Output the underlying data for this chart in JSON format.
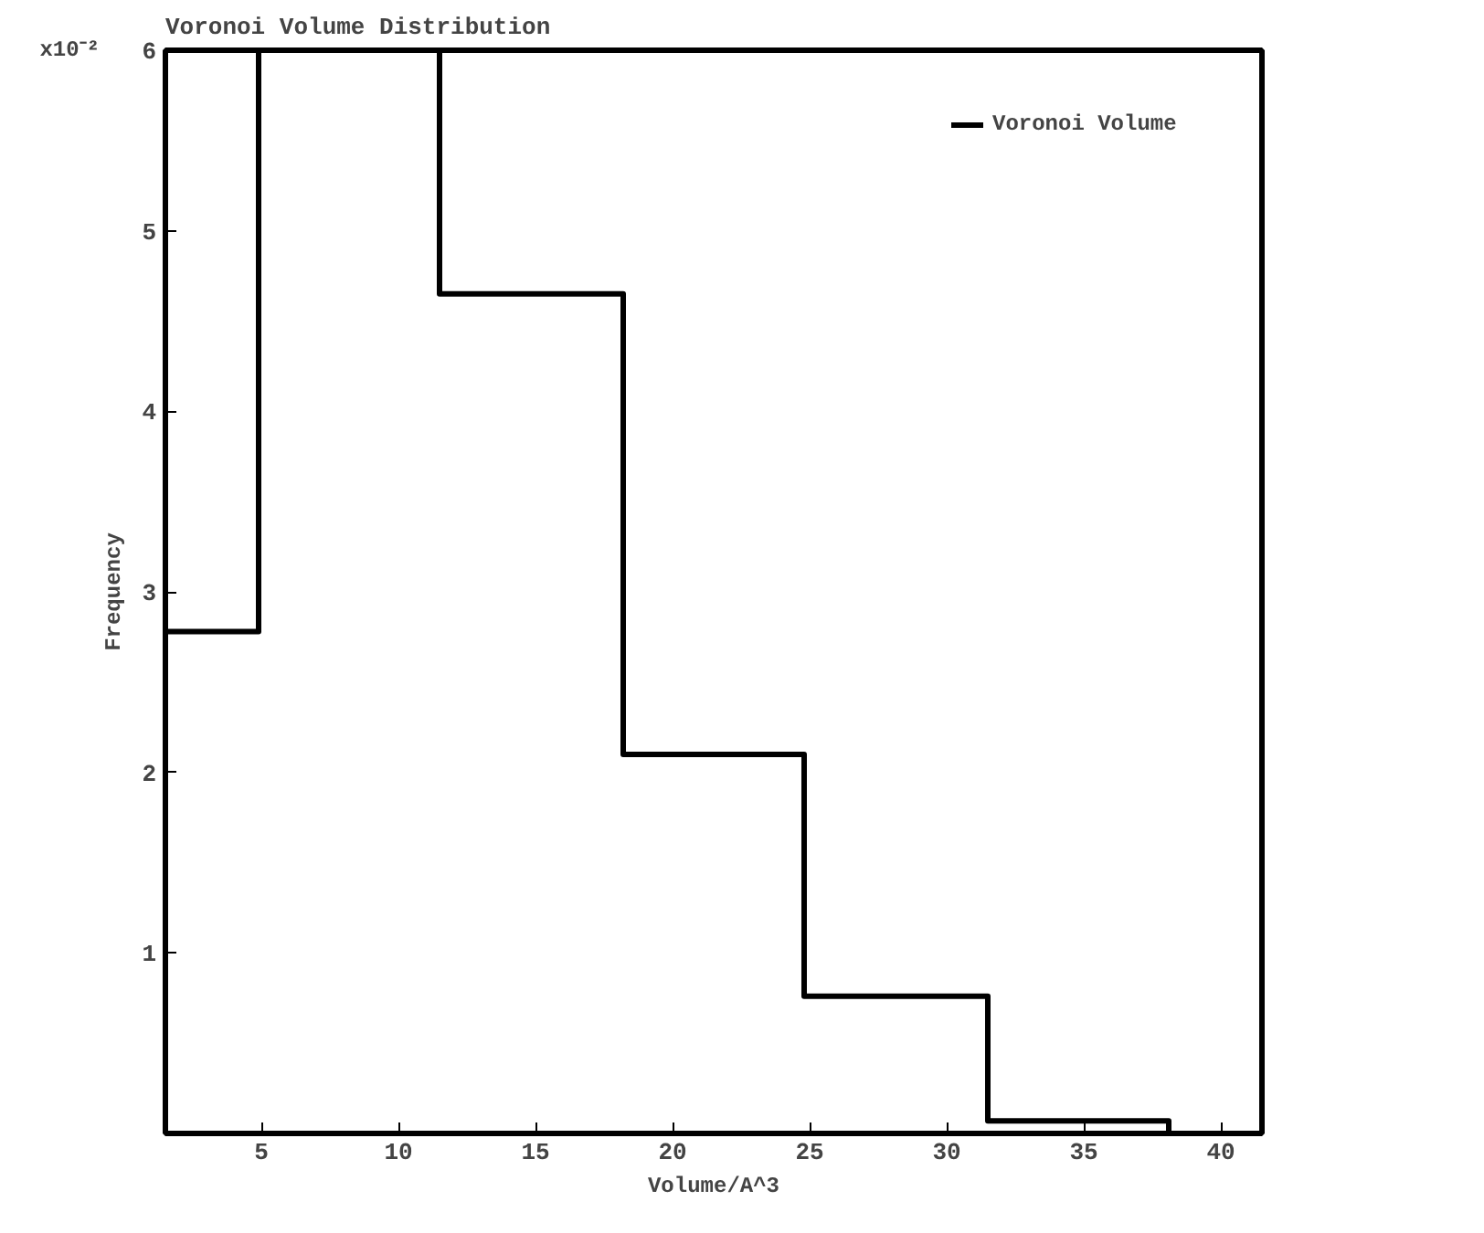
{
  "chart_data": {
    "type": "histogram",
    "title": "Voronoi Volume Distribution",
    "xlabel": "Volume/A^3",
    "ylabel": "Frequency",
    "bins": [
      1.5,
      4.9,
      11.5,
      18.2,
      24.8,
      31.5,
      38.1
    ],
    "series": [
      {
        "name": "Voronoi Volume",
        "color": "#000000",
        "values": [
          2.78,
          6,
          4.65,
          2.1,
          0.76,
          0.07
        ]
      }
    ],
    "annotations": [
      "x10⁻²"
    ],
    "xlim": [
      1.5,
      41.5
    ],
    "xticks": [
      5,
      10,
      15,
      20,
      25,
      30,
      35,
      40
    ],
    "ylim": [
      0,
      6
    ],
    "yticks": [
      1,
      2,
      3,
      4,
      5,
      6
    ],
    "grid": false,
    "legend": "top right"
  }
}
